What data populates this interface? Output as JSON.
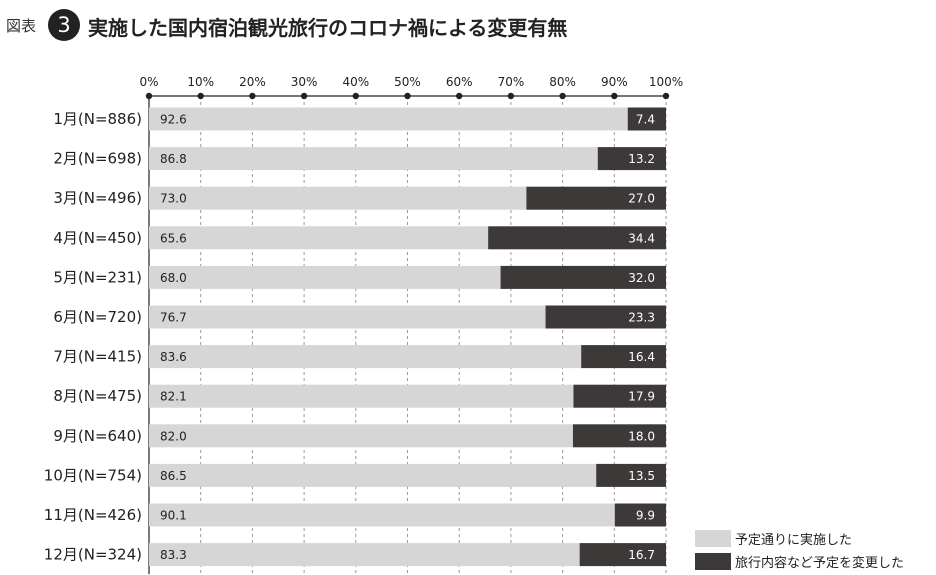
{
  "header": {
    "fig_label": "図表",
    "fig_number": "3",
    "title": "実施した国内宿泊観光旅行のコロナ禍による変更有無"
  },
  "colors": {
    "as_planned": "#d6d6d6",
    "changed": "#3d3939"
  },
  "chart_data": {
    "type": "bar",
    "orientation": "horizontal",
    "stacked": true,
    "normalized": true,
    "title": "実施した国内宿泊観光旅行のコロナ禍による変更有無",
    "x_ticks": [
      "0%",
      "10%",
      "20%",
      "30%",
      "40%",
      "50%",
      "60%",
      "70%",
      "80%",
      "90%",
      "100%"
    ],
    "xlim": [
      0,
      100
    ],
    "grid": "vertical dashed",
    "legend_position": "bottom-right",
    "categories": [
      "1月(N=886)",
      "2月(N=698)",
      "3月(N=496)",
      "4月(N=450)",
      "5月(N=231)",
      "6月(N=720)",
      "7月(N=415)",
      "8月(N=475)",
      "9月(N=640)",
      "10月(N=754)",
      "11月(N=426)",
      "12月(N=324)"
    ],
    "series": [
      {
        "name": "予定通りに実施した",
        "values": [
          "92.6",
          "86.8",
          "73.0",
          "65.6",
          "68.0",
          "76.7",
          "83.6",
          "82.1",
          "82.0",
          "86.5",
          "90.1",
          "83.3"
        ]
      },
      {
        "name": "旅行内容など予定を変更した",
        "values": [
          "7.4",
          "13.2",
          "27.0",
          "34.4",
          "32.0",
          "23.3",
          "16.4",
          "17.9",
          "18.0",
          "13.5",
          "9.9",
          "16.7"
        ]
      }
    ]
  }
}
